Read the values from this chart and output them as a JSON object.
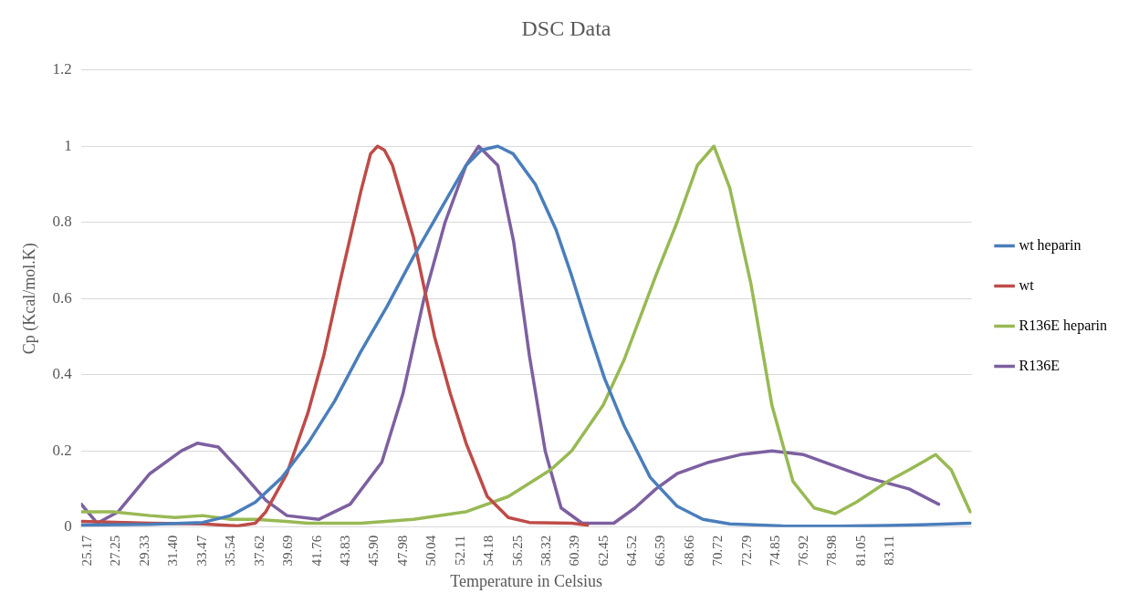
{
  "chart_data": {
    "type": "line",
    "title": "DSC Data",
    "xlabel": "Temperature in Celsius",
    "ylabel": "Cp (Kcal/mol.K)",
    "xlim": [
      24.7,
      89
    ],
    "xticks": [
      25.17,
      27.25,
      29.33,
      {
        "value": 31.4,
        "label": "31.40"
      },
      33.47,
      35.54,
      37.62,
      39.69,
      41.76,
      43.83,
      {
        "value": 45.9,
        "label": "45.90"
      },
      47.98,
      50.04,
      52.11,
      54.18,
      56.25,
      58.32,
      60.39,
      62.45,
      64.52,
      66.59,
      68.66,
      70.72,
      72.79,
      74.85,
      76.92,
      78.98,
      81.05,
      83.11
    ],
    "ylim": [
      0,
      1.2
    ],
    "yticks": [
      0,
      0.2,
      0.4,
      0.6,
      0.8,
      1,
      1.2
    ],
    "grid": "y",
    "legend": "right",
    "marker": "none",
    "line_style": "solid",
    "series": [
      {
        "name": "wt heparin",
        "color": "#4a7ebb",
        "x": [
          24.71,
          29.66,
          33.47,
          35.5,
          37.28,
          39.2,
          41.08,
          43,
          44.89,
          46.8,
          48.7,
          50.6,
          52.5,
          53.6,
          54.79,
          55.9,
          57.5,
          59,
          60.12,
          61.5,
          62.5,
          63.92,
          65.8,
          67.73,
          69.6,
          71.54,
          75.35,
          79.15,
          82.96,
          86.4,
          88.9
        ],
        "values": [
          0.005,
          0.007,
          0.012,
          0.03,
          0.065,
          0.13,
          0.22,
          0.33,
          0.46,
          0.58,
          0.71,
          0.83,
          0.95,
          0.99,
          1.0,
          0.98,
          0.9,
          0.78,
          0.66,
          0.5,
          0.39,
          0.265,
          0.13,
          0.055,
          0.02,
          0.008,
          0.003,
          0.002,
          0.004,
          0.007,
          0.01
        ]
      },
      {
        "name": "wt",
        "color": "#be4b48",
        "x": [
          24.71,
          29.66,
          33.47,
          36,
          37.28,
          38.04,
          39.56,
          41.08,
          42.22,
          43.37,
          44.89,
          45.6,
          46.11,
          46.6,
          47.18,
          48.7,
          50.22,
          51.36,
          52.5,
          54.03,
          55.55,
          57.07,
          60.12,
          61.26
        ],
        "values": [
          0.015,
          0.01,
          0.008,
          0.003,
          0.01,
          0.04,
          0.14,
          0.3,
          0.45,
          0.64,
          0.88,
          0.98,
          1.0,
          0.99,
          0.95,
          0.76,
          0.5,
          0.35,
          0.22,
          0.08,
          0.025,
          0.012,
          0.01,
          0.005
        ]
      },
      {
        "name": "R136E heparin",
        "color": "#98b954",
        "x": [
          24.71,
          27,
          29.66,
          31.5,
          33.47,
          35.5,
          37.28,
          39.5,
          41.08,
          44.89,
          48.7,
          52.5,
          55.55,
          58.6,
          60.12,
          62.4,
          63.92,
          66.2,
          67.73,
          69.2,
          70.4,
          71.54,
          73.06,
          74.58,
          76.1,
          77.63,
          79.15,
          80.67,
          82.96,
          84.48,
          86.4,
          87.53,
          88.9
        ],
        "values": [
          0.04,
          0.04,
          0.03,
          0.025,
          0.03,
          0.02,
          0.02,
          0.015,
          0.01,
          0.01,
          0.02,
          0.04,
          0.08,
          0.15,
          0.2,
          0.32,
          0.44,
          0.66,
          0.8,
          0.95,
          1.0,
          0.89,
          0.64,
          0.32,
          0.12,
          0.05,
          0.035,
          0.065,
          0.12,
          0.15,
          0.19,
          0.15,
          0.04
        ]
      },
      {
        "name": "R136E",
        "color": "#7d60a0",
        "x": [
          24.71,
          25.86,
          27.38,
          29.66,
          31.95,
          33.09,
          34.61,
          36.13,
          38.04,
          39.56,
          41.85,
          44.13,
          46.41,
          47.94,
          49.46,
          50.98,
          52.5,
          53.41,
          54.79,
          55.93,
          57.07,
          58.21,
          59.36,
          60.88,
          63.16,
          64.69,
          66.21,
          67.73,
          70.01,
          72.3,
          74.58,
          76.87,
          79.15,
          81.43,
          84.48,
          86.62
        ],
        "values": [
          0.06,
          0.01,
          0.04,
          0.14,
          0.2,
          0.22,
          0.21,
          0.15,
          0.07,
          0.03,
          0.02,
          0.06,
          0.17,
          0.35,
          0.6,
          0.8,
          0.95,
          1.0,
          0.95,
          0.75,
          0.45,
          0.2,
          0.05,
          0.01,
          0.01,
          0.05,
          0.1,
          0.14,
          0.17,
          0.19,
          0.2,
          0.19,
          0.16,
          0.13,
          0.1,
          0.06
        ]
      }
    ]
  }
}
